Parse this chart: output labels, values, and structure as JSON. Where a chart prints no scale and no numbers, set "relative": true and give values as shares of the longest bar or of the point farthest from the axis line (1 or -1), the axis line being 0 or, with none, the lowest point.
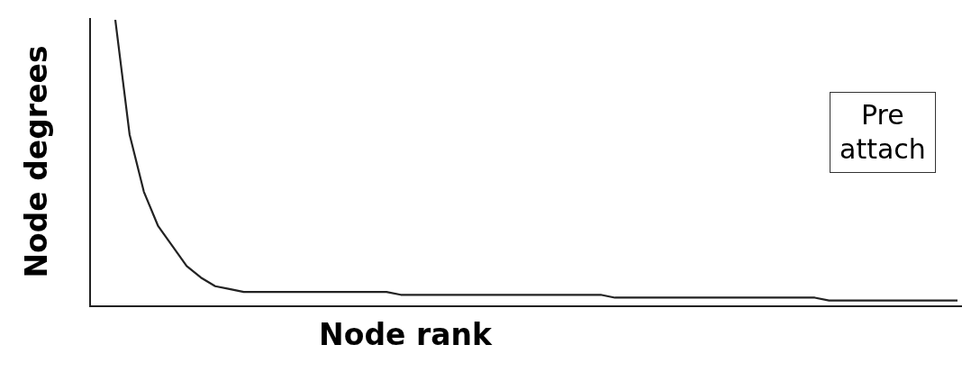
{
  "chart_data": {
    "type": "line",
    "relative": true,
    "xlabel": "Node rank",
    "ylabel": "Node degrees",
    "annotations": [
      "Pre\nattach"
    ],
    "marker": "none",
    "legend": false,
    "categories": [
      null,
      null,
      null,
      null,
      null,
      null,
      null,
      null,
      null,
      null,
      null,
      null,
      null,
      null,
      null,
      null,
      null,
      null,
      null,
      null,
      null,
      null,
      null,
      null,
      null,
      null,
      null,
      null,
      null,
      null,
      null,
      null,
      null,
      null,
      null,
      null,
      null,
      null,
      null,
      null,
      null,
      null,
      null,
      null,
      null,
      null,
      null,
      null,
      null,
      null,
      null,
      null,
      null,
      null,
      null,
      null,
      null,
      null,
      null,
      null
    ],
    "series": [
      {
        "color": "#222222",
        "values": [
          1.0,
          0.6,
          0.4,
          0.28,
          0.21,
          0.14,
          0.1,
          0.07,
          0.06,
          0.05,
          0.05,
          0.05,
          0.05,
          0.05,
          0.05,
          0.05,
          0.05,
          0.05,
          0.05,
          0.05,
          0.04,
          0.04,
          0.04,
          0.04,
          0.04,
          0.04,
          0.04,
          0.04,
          0.04,
          0.04,
          0.04,
          0.04,
          0.04,
          0.04,
          0.04,
          0.03,
          0.03,
          0.03,
          0.03,
          0.03,
          0.03,
          0.03,
          0.03,
          0.03,
          0.03,
          0.03,
          0.03,
          0.03,
          0.03,
          0.03,
          0.02,
          0.02,
          0.02,
          0.02,
          0.02,
          0.02,
          0.02,
          0.02,
          0.02,
          0.02
        ]
      }
    ]
  }
}
